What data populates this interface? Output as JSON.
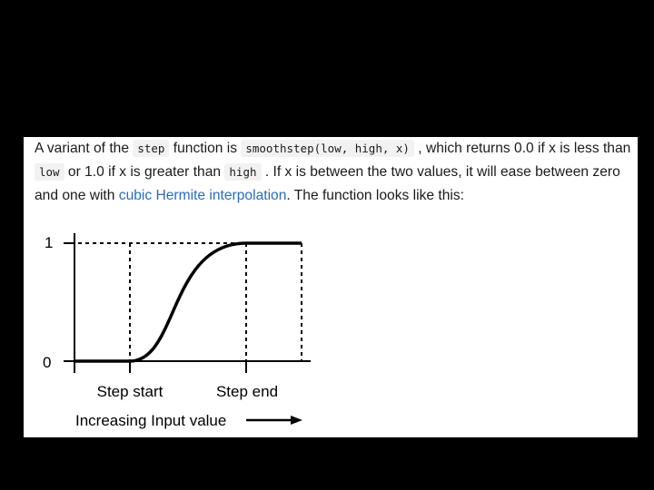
{
  "paragraph": {
    "t1": "A variant of the ",
    "c1": "step",
    "t2": " function is ",
    "c2": "smoothstep(low, high, x)",
    "t3": " , which returns 0.0 if x is less than ",
    "c3": "low",
    "t4": " or 1.0 if x is greater than ",
    "c4": "high",
    "t5": " . If x is between the two values, it will ease between zero and one with ",
    "link": "cubic Hermite interpolation",
    "t6": ". The function looks like this:"
  },
  "figure": {
    "y_tick_top": "1",
    "y_tick_bottom": "0",
    "label_step_start": "Step start",
    "label_step_end": "Step end",
    "axis_caption": "Increasing Input value"
  }
}
